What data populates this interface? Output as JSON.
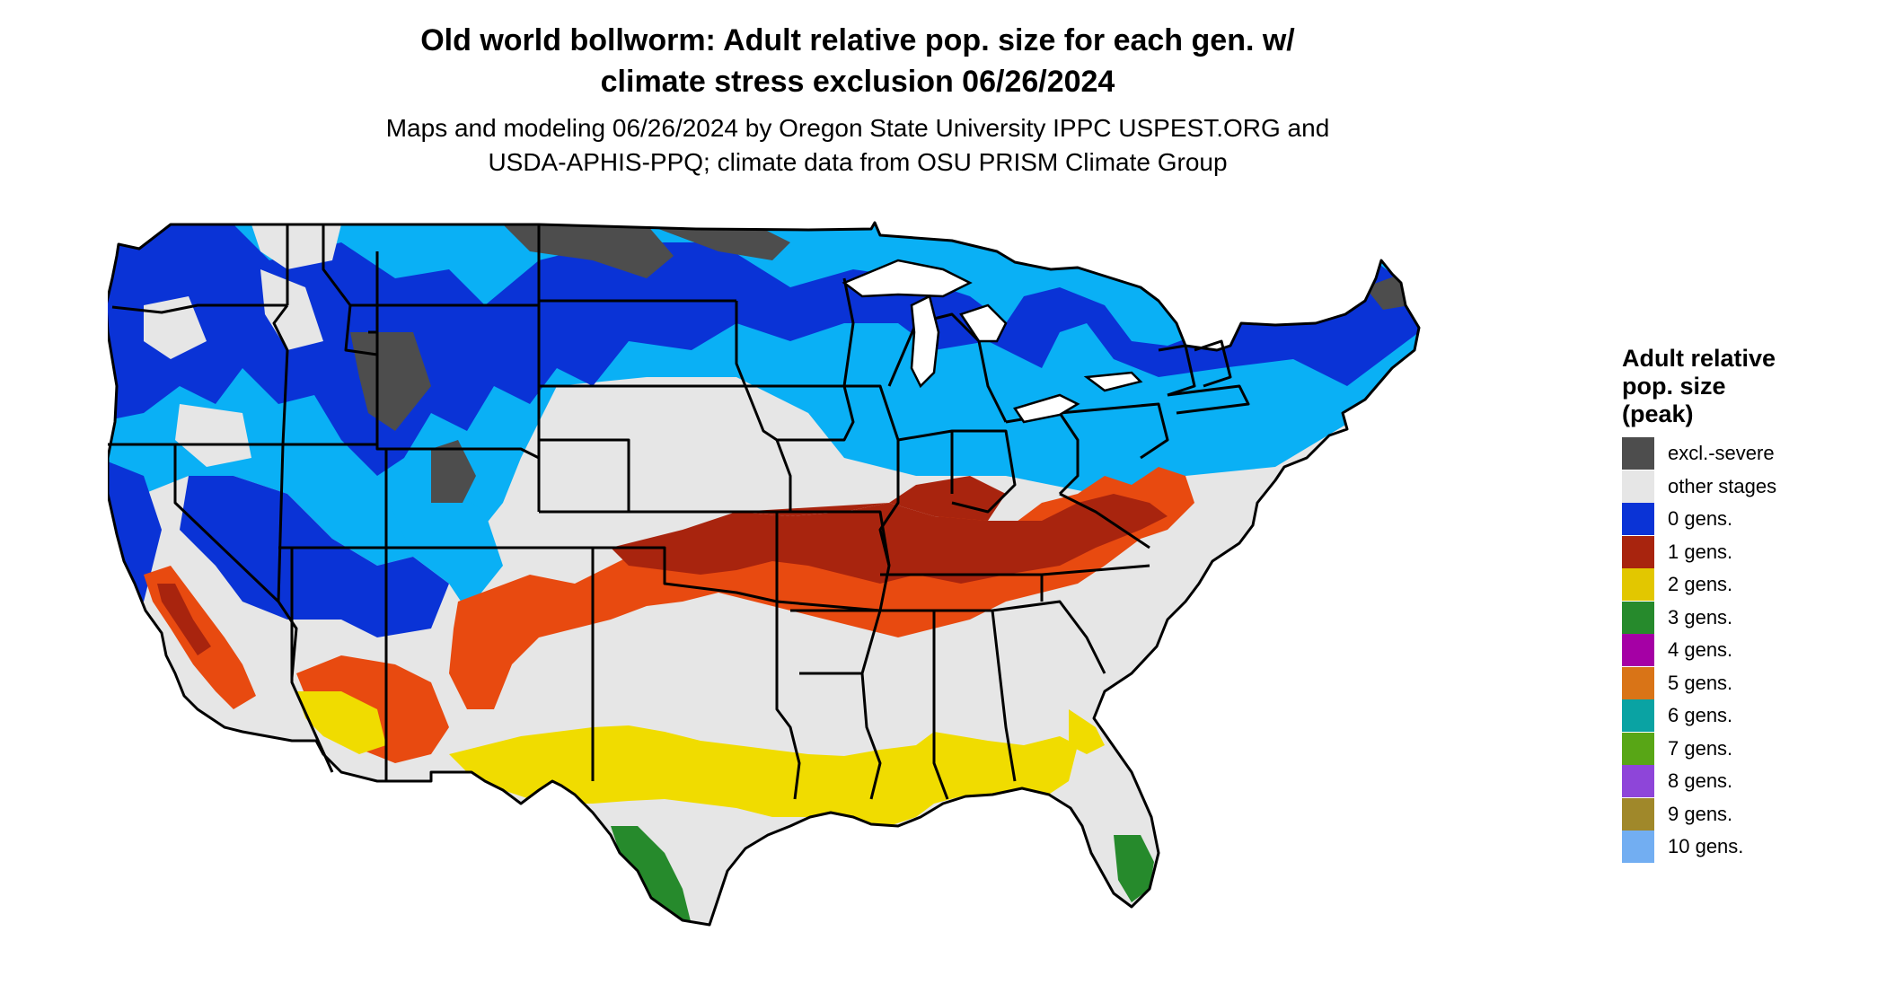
{
  "title_line1": "Old world bollworm: Adult relative pop. size for each gen. w/",
  "title_line2": "climate stress exclusion 06/26/2024",
  "subtitle_line1": "Maps and modeling 06/26/2024 by Oregon State University IPPC USPEST.ORG and",
  "subtitle_line2": "USDA-APHIS-PPQ; climate data from OSU PRISM Climate Group",
  "legend": {
    "title_line1": "Adult relative",
    "title_line2": "pop. size",
    "title_line3": "(peak)",
    "items": [
      {
        "label": "excl.-severe",
        "color": "#4d4d4d"
      },
      {
        "label": "other stages",
        "color": "#e6e6e6"
      },
      {
        "label": "0 gens.",
        "color": "#0a33d6"
      },
      {
        "label": "1 gens.",
        "color": "#a8240e"
      },
      {
        "label": "2 gens.",
        "color": "#e2c700"
      },
      {
        "label": "3 gens.",
        "color": "#268a2c"
      },
      {
        "label": "4 gens.",
        "color": "#a500a5"
      },
      {
        "label": "5 gens.",
        "color": "#d97417"
      },
      {
        "label": "6 gens.",
        "color": "#0aa3a3"
      },
      {
        "label": "7 gens.",
        "color": "#58a616"
      },
      {
        "label": "8 gens.",
        "color": "#8e45d9"
      },
      {
        "label": "9 gens.",
        "color": "#a0882a"
      },
      {
        "label": "10 gens.",
        "color": "#72aef2"
      }
    ]
  },
  "map_colors": {
    "excl_severe": "#4d4d4d",
    "other_stages": "#e6e6e6",
    "zero_gens_dark": "#0a33d6",
    "zero_gens_light": "#0ab0f5",
    "one_gen_dark": "#a8240e",
    "one_gen_light": "#e84a10",
    "two_gens": "#f0dc00",
    "three_gens": "#268a2c",
    "state_lines": "#000000"
  }
}
